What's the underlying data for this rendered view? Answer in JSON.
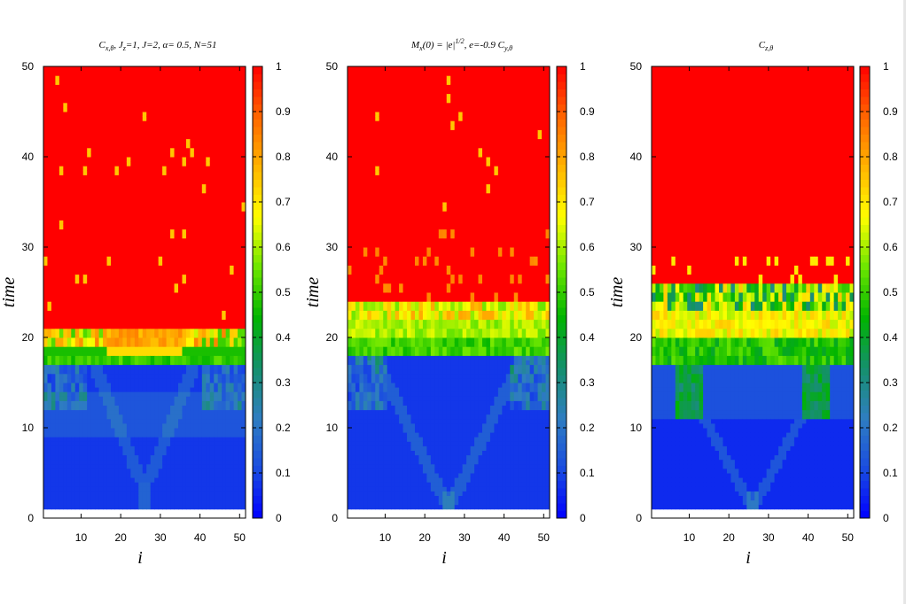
{
  "chart_data": [
    {
      "type": "heatmap",
      "title": "C_{x,θ}, J_z=1, J=2, α= 0.5, N=51",
      "title_parts": {
        "a": "C",
        "a_sub": "x,θ",
        "b": ", J",
        "b_sub": "z",
        "c": "=1,  J=2, α= 0.5, N=51"
      },
      "xlabel": "i",
      "ylabel": "time",
      "xlim": [
        1,
        51
      ],
      "ylim": [
        0,
        50
      ],
      "xticks": [
        "10",
        "20",
        "30",
        "40",
        "50"
      ],
      "yticks": [
        "0",
        "10",
        "20",
        "30",
        "40",
        "50"
      ],
      "colorbar": {
        "range": [
          0,
          1
        ],
        "ticks": [
          "0",
          "0.1",
          "0.2",
          "0.3",
          "0.4",
          "0.5",
          "0.6",
          "0.7",
          "0.8",
          "0.9",
          "1"
        ]
      },
      "colormap": [
        "#0000ff",
        "#1a4de0",
        "#2f7ec0",
        "#15906c",
        "#00b400",
        "#6ce600",
        "#ffff00",
        "#ffb400",
        "#ff6600",
        "#ff0000"
      ],
      "regimes": {
        "low_time_end": 17,
        "transition_band": [
          17,
          21
        ],
        "saturation_from": 21
      },
      "field": {
        "bulk_below": 0.08,
        "band_17_18": 0.45,
        "band_18_19": 0.62,
        "band_19_21": 0.85,
        "above": 1.0
      }
    },
    {
      "type": "heatmap",
      "title": "M_x(0) = |e|^{1/2}, e=-0.9  C_{y,θ}",
      "title_parts": {
        "a": "M",
        "a_sub": "x",
        "b": "(0) = |e|",
        "b_sup": "1/2",
        "c": ", e=-0.9  C",
        "c_sub": "y,θ"
      },
      "xlabel": "i",
      "ylabel": "time",
      "xlim": [
        1,
        51
      ],
      "ylim": [
        0,
        50
      ],
      "xticks": [
        "10",
        "20",
        "30",
        "40",
        "50"
      ],
      "yticks": [
        "0",
        "10",
        "20",
        "30",
        "40",
        "50"
      ],
      "colorbar": {
        "range": [
          0,
          1
        ],
        "ticks": [
          "0",
          "0.1",
          "0.2",
          "0.3",
          "0.4",
          "0.5",
          "0.6",
          "0.7",
          "0.8",
          "0.9",
          "1"
        ]
      },
      "colormap": [
        "#0000ff",
        "#1a4de0",
        "#2f7ec0",
        "#15906c",
        "#00b400",
        "#6ce600",
        "#ffff00",
        "#ffb400",
        "#ff6600",
        "#ff0000"
      ],
      "regimes": {
        "low_time_end": 18,
        "transition_band": [
          18,
          24
        ],
        "saturation_from": 24
      },
      "field": {
        "bulk_below": 0.08,
        "band_18_20": 0.45,
        "band_20_22": 0.55,
        "band_22_24": 0.8,
        "above": 1.0
      }
    },
    {
      "type": "heatmap",
      "title": "C_{z,θ}",
      "title_parts": {
        "a": "C",
        "a_sub": "z,θ"
      },
      "xlabel": "i",
      "ylabel": "time",
      "xlim": [
        1,
        51
      ],
      "ylim": [
        0,
        50
      ],
      "xticks": [
        "10",
        "20",
        "30",
        "40",
        "50"
      ],
      "yticks": [
        "0",
        "10",
        "20",
        "30",
        "40",
        "50"
      ],
      "colorbar": {
        "range": [
          0,
          1
        ],
        "ticks": [
          "0",
          "0.1",
          "0.2",
          "0.3",
          "0.4",
          "0.5",
          "0.6",
          "0.7",
          "0.8",
          "0.9",
          "1"
        ]
      },
      "colormap": [
        "#0000ff",
        "#1a4de0",
        "#2f7ec0",
        "#15906c",
        "#00b400",
        "#6ce600",
        "#ffff00",
        "#ffb400",
        "#ff6600",
        "#ff0000"
      ],
      "regimes": {
        "low_time_end": 11,
        "transition_band": [
          11,
          26
        ],
        "saturation_from": 26
      },
      "field": {
        "bulk_below": 0.06,
        "band_11_17": 0.3,
        "band_17_20": 0.4,
        "band_20_23": 0.6,
        "band_23_26": 0.75,
        "above": 1.0
      }
    }
  ]
}
